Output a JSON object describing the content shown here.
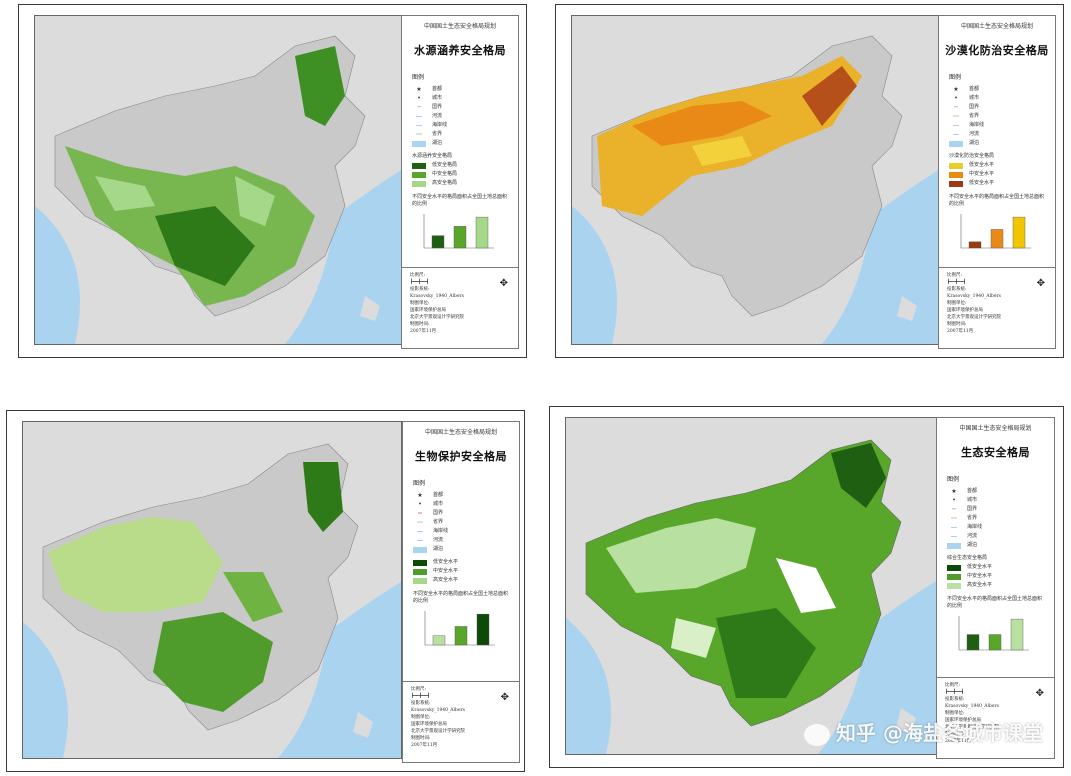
{
  "panels": [
    {
      "subtitle": "中国国土生态安全格局规划",
      "title": "水源涵养安全格局",
      "legend_header": "图例",
      "legend_symbols": [
        "首都",
        "城市",
        "国界",
        "河流",
        "海岸线",
        "省界",
        "湖泊"
      ],
      "level_header": "水源涵养安全格局",
      "levels": [
        {
          "label": "低安全格局",
          "color": "#1f5f12"
        },
        {
          "label": "中安全格局",
          "color": "#58a62a"
        },
        {
          "label": "高安全格局",
          "color": "#a6d88a"
        }
      ],
      "chart_title": "不同安全水平的格局面积占全国土地总面积的比例",
      "chart_values": [
        2,
        3.5,
        5
      ],
      "chart_colors": [
        "#1f5f12",
        "#58a62a",
        "#a6d88a"
      ],
      "footer": [
        "比例尺:",
        "投影系统:",
        "Krasovsky_1940_Albers",
        "制图单位:",
        "国家环境保护总局",
        "北京大学景观设计学研究院",
        "制图时间:",
        "2007年11月"
      ]
    },
    {
      "subtitle": "中国国土生态安全格局规划",
      "title": "沙漠化防治安全格局",
      "legend_header": "图例",
      "legend_symbols": [
        "首都",
        "城市",
        "国界",
        "省界",
        "海岸线",
        "河流",
        "湖泊"
      ],
      "level_header": "沙漠化防治安全格局",
      "levels": [
        {
          "label": "低安全水平",
          "color": "#e4cf2c"
        },
        {
          "label": "中安全水平",
          "color": "#e98a17"
        },
        {
          "label": "低安全水平",
          "color": "#9a3b10"
        }
      ],
      "chart_title": "不同安全水平的格局面积占全国土地总面积的比例",
      "chart_values": [
        1,
        3,
        5
      ],
      "chart_colors": [
        "#9a3b10",
        "#e98a17",
        "#f3c400"
      ],
      "footer": [
        "比例尺:",
        "投影系统:",
        "Krasovsky_1940_Albers",
        "制图单位:",
        "国家环境保护总局",
        "北京大学景观设计学研究院",
        "制图时间:",
        "2007年11月"
      ]
    },
    {
      "subtitle": "中国国土生态安全格局规划",
      "title": "生物保护安全格局",
      "legend_header": "图例",
      "legend_symbols": [
        "首都",
        "城市",
        "国界",
        "省界",
        "海岸线",
        "河流",
        "湖泊"
      ],
      "level_header": "",
      "levels": [
        {
          "label": "低安全水平",
          "color": "#0d4a08"
        },
        {
          "label": "中安全水平",
          "color": "#4f9b2c"
        },
        {
          "label": "高安全水平",
          "color": "#a6d88a"
        }
      ],
      "chart_title": "不同安全水平的格局面积占全国土地总面积的比例",
      "chart_values": [
        1.5,
        3,
        5
      ],
      "chart_colors": [
        "#b8e0a0",
        "#58a62a",
        "#0d4a08"
      ],
      "footer": [
        "比例尺:",
        "投影系统:",
        "Krasovsky_1940_Albers",
        "制图单位:",
        "国家环境保护总局",
        "北京大学景观设计学研究院",
        "制图时间:",
        "2007年11月"
      ]
    },
    {
      "subtitle": "中国国土生态安全格局规划",
      "title": "生态安全格局",
      "legend_header": "图例",
      "legend_symbols": [
        "首都",
        "城市",
        "国界",
        "省界",
        "海岸线",
        "河流",
        "湖泊"
      ],
      "level_header": "综合生态安全格局",
      "levels": [
        {
          "label": "低安全水平",
          "color": "#0d4a08"
        },
        {
          "label": "中安全水平",
          "color": "#4f9b2c"
        },
        {
          "label": "高安全水平",
          "color": "#b8e0a0"
        }
      ],
      "chart_title": "不同安全水平的格局面积占全国土地总面积的比例",
      "chart_values": [
        2.5,
        2.5,
        5
      ],
      "chart_colors": [
        "#1f5f12",
        "#58a62a",
        "#b8e0a0"
      ],
      "footer": [
        "比例尺:",
        "投影系统:",
        "Krasovsky_1940_Albers",
        "制图单位:",
        "国家环境保护总局",
        "北京大学景观设计学研究院",
        "制图时间:",
        "2007年11月"
      ]
    }
  ],
  "watermark": "知乎 @海盐冬城市课堂",
  "colors": {
    "sea": "#a9d3ee",
    "land_gray": "#c9c9c9",
    "neighbor_land": "#dcdcdc"
  }
}
